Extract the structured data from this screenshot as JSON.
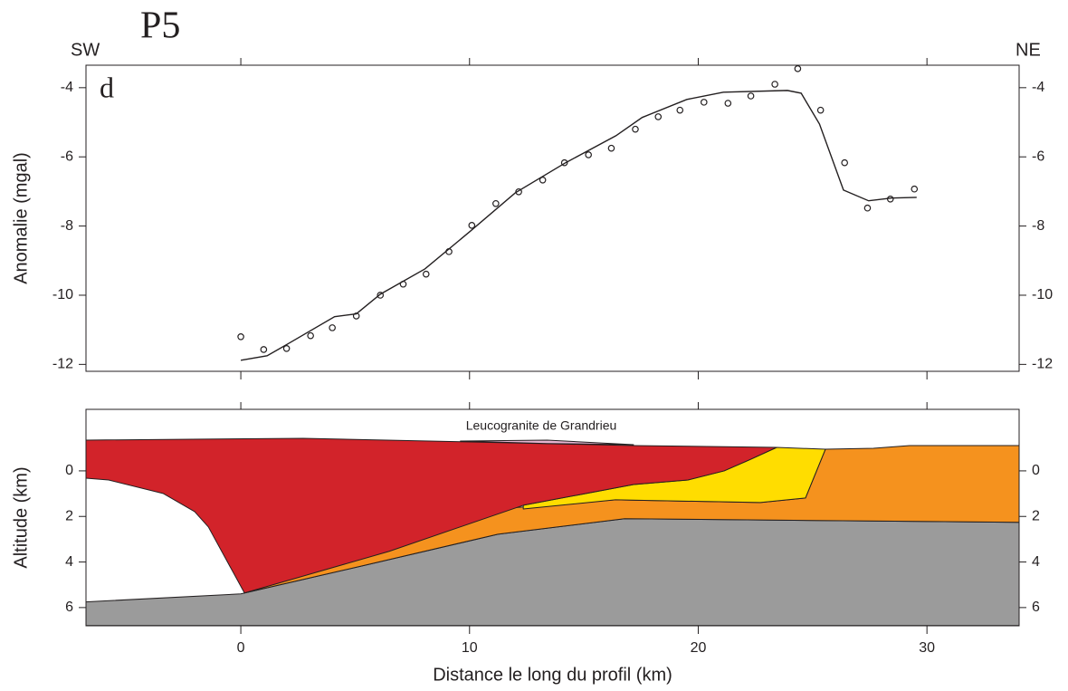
{
  "title": "P5",
  "left_label": "SW",
  "right_label": "NE",
  "chart_data": [
    {
      "type": "profile",
      "panel_label": "d",
      "ylabel": "Anomalie (mgal)",
      "xlim": [
        -6.77,
        34.03
      ],
      "ylim": [
        -12.2,
        -3.35
      ],
      "xticks": [
        0,
        10,
        20,
        30
      ],
      "yticks": [
        -4,
        -6,
        -8,
        -10,
        -12
      ],
      "series": [
        {
          "marker": "circle",
          "color": "#231f20",
          "x": [
            0,
            1.0,
            2.0,
            3.05,
            4.0,
            5.05,
            6.1,
            7.1,
            8.1,
            9.1,
            10.1,
            11.15,
            12.15,
            13.2,
            14.15,
            15.2,
            16.2,
            17.25,
            18.25,
            19.2,
            20.25,
            21.3,
            22.3,
            23.35,
            24.35,
            25.35,
            26.4,
            27.4,
            28.4,
            29.45
          ],
          "values": [
            -11.2,
            -11.57,
            -11.54,
            -11.17,
            -10.94,
            -10.6,
            -10.0,
            -9.68,
            -9.39,
            -8.74,
            -7.98,
            -7.35,
            -7.01,
            -6.67,
            -6.17,
            -5.94,
            -5.75,
            -5.2,
            -4.84,
            -4.65,
            -4.42,
            -4.45,
            -4.24,
            -3.9,
            -3.45,
            -4.65,
            -6.17,
            -7.48,
            -7.22,
            -6.93
          ]
        },
        {
          "marker": "line",
          "color": "#231f20",
          "x": [
            0,
            1.15,
            2.05,
            4.1,
            5.05,
            6.1,
            8.05,
            10.05,
            12.0,
            14.2,
            16.4,
            17.55,
            19.5,
            21.1,
            23.9,
            24.5,
            25.3,
            26.35,
            27.45,
            28.45,
            29.55
          ],
          "values": [
            -11.88,
            -11.75,
            -11.41,
            -10.62,
            -10.54,
            -9.97,
            -9.24,
            -8.14,
            -7.04,
            -6.17,
            -5.39,
            -4.86,
            -4.34,
            -4.13,
            -4.08,
            -4.16,
            -5.05,
            -6.96,
            -7.27,
            -7.19,
            -7.17
          ]
        }
      ]
    },
    {
      "type": "cross-section",
      "ylabel": "Altitude (km)",
      "xlabel": "Distance le long du profil (km)",
      "xlim": [
        -6.77,
        34.03
      ],
      "ylim": [
        -2.7,
        6.8
      ],
      "y_inverted": true,
      "xticks": [
        0,
        10,
        20,
        30
      ],
      "yticks": [
        0,
        2,
        4,
        6
      ],
      "annotation": "Leucogranite de Grandrieu",
      "bodies": [
        {
          "color": "#9b9b9b",
          "x": [
            -6.77,
            0,
            5.3,
            11.24,
            16.78,
            34.03,
            34.03,
            -6.77
          ],
          "depth": [
            5.75,
            5.4,
            4.17,
            2.78,
            2.1,
            2.26,
            6.79,
            6.79
          ]
        },
        {
          "color": "#f5921e",
          "x": [
            0.16,
            11.24,
            16.38,
            22.71,
            24.69,
            25.56,
            27.66,
            29.24,
            34.03,
            34.03,
            16.78,
            11.24,
            5.3
          ],
          "depth": [
            5.36,
            1.67,
            1.27,
            1.39,
            1.19,
            -0.95,
            -0.99,
            -1.11,
            -1.11,
            2.26,
            2.1,
            2.78,
            4.17
          ]
        },
        {
          "color": "#ffdd00",
          "x": [
            12.35,
            17.17,
            19.55,
            21.13,
            22.32,
            23.43,
            25.56,
            24.69,
            22.71,
            16.38,
            12.35
          ],
          "depth": [
            1.51,
            0.6,
            0.4,
            0,
            -0.52,
            -1.03,
            -0.95,
            1.19,
            1.39,
            1.27,
            1.67
          ]
        },
        {
          "color": "#d2232a",
          "x": [
            -6.77,
            2.73,
            10.05,
            17.17,
            23.43,
            22.32,
            21.13,
            19.55,
            17.17,
            12.35,
            6.49,
            0.16,
            -1.42,
            -2.02,
            -3.4,
            -5.78,
            -6.77
          ],
          "depth": [
            -1.35,
            -1.43,
            -1.27,
            -1.11,
            -1.03,
            -0.52,
            0,
            0.4,
            0.6,
            1.51,
            3.53,
            5.36,
            2.46,
            1.79,
            0.99,
            0.4,
            0.32
          ]
        },
        {
          "color": "#e8b4d0",
          "x": [
            9.6,
            13.4,
            17.17,
            13.4
          ],
          "depth": [
            -1.31,
            -1.35,
            -1.15,
            -1.2
          ]
        }
      ]
    }
  ]
}
